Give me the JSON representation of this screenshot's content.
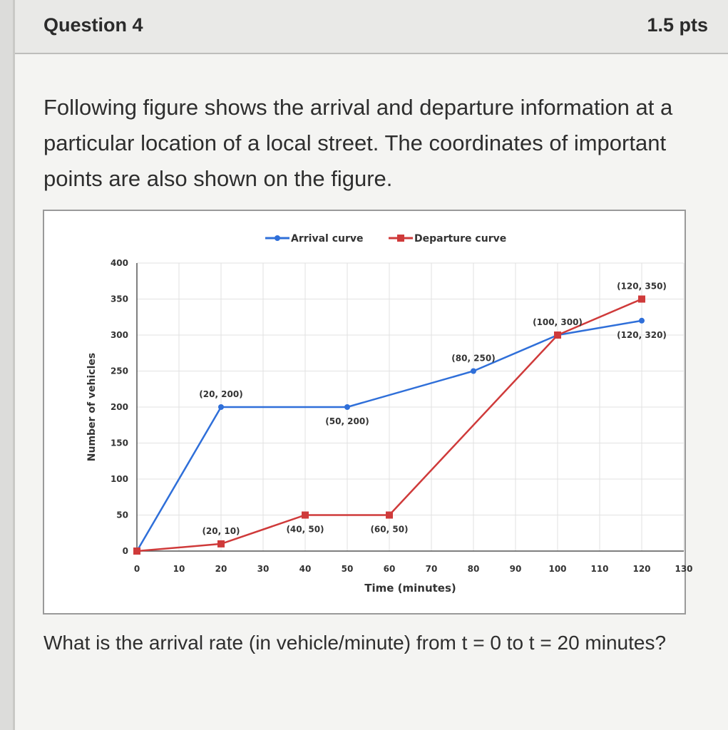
{
  "question": {
    "title": "Question 4",
    "points": "1.5 pts",
    "text": "Following figure shows the arrival and departure information at a particular location of a local street. The coordinates of important points are also shown on the figure.",
    "ask": "What is the arrival rate (in vehicle/minute) from t = 0 to t = 20 minutes?"
  },
  "colors": {
    "arrival": "#2f6fd9",
    "departure": "#cf3a3a",
    "grid": "#e2e2e2"
  },
  "chart_data": {
    "type": "line",
    "title": "",
    "xlabel": "Time (minutes)",
    "ylabel": "Number of vehicles",
    "xlim": [
      0,
      130
    ],
    "ylim": [
      0,
      400
    ],
    "xticks": [
      0,
      10,
      20,
      30,
      40,
      50,
      60,
      70,
      80,
      90,
      100,
      110,
      120,
      130
    ],
    "yticks": [
      0,
      50,
      100,
      150,
      200,
      250,
      300,
      350,
      400
    ],
    "grid": true,
    "legend_position": "top-center",
    "series": [
      {
        "name": "Arrival curve",
        "color": "#2f6fd9",
        "points": [
          [
            0,
            0
          ],
          [
            20,
            200
          ],
          [
            50,
            200
          ],
          [
            80,
            250
          ],
          [
            100,
            300
          ],
          [
            120,
            320
          ]
        ]
      },
      {
        "name": "Departure curve",
        "color": "#cf3a3a",
        "points": [
          [
            0,
            0
          ],
          [
            20,
            10
          ],
          [
            40,
            50
          ],
          [
            60,
            50
          ],
          [
            100,
            300
          ],
          [
            120,
            350
          ]
        ]
      }
    ],
    "annotations": [
      {
        "text": "(20, 200)",
        "x": 20,
        "y": 200,
        "anchor": "above"
      },
      {
        "text": "(50, 200)",
        "x": 50,
        "y": 200,
        "anchor": "below"
      },
      {
        "text": "(80, 250)",
        "x": 80,
        "y": 250,
        "anchor": "above"
      },
      {
        "text": "(100, 300)",
        "x": 100,
        "y": 300,
        "anchor": "above"
      },
      {
        "text": "(120, 350)",
        "x": 120,
        "y": 350,
        "anchor": "above"
      },
      {
        "text": "(120, 320)",
        "x": 120,
        "y": 320,
        "anchor": "below"
      },
      {
        "text": "(20, 10)",
        "x": 20,
        "y": 10,
        "anchor": "above"
      },
      {
        "text": "(40, 50)",
        "x": 40,
        "y": 50,
        "anchor": "below"
      },
      {
        "text": "(60, 50)",
        "x": 60,
        "y": 50,
        "anchor": "below"
      }
    ]
  }
}
